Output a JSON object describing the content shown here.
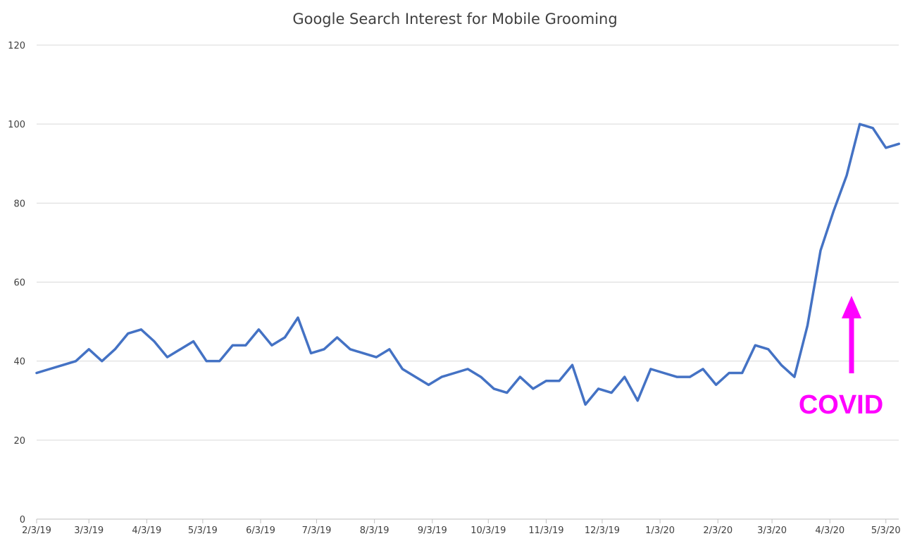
{
  "chart_data": {
    "type": "line",
    "title": "Google Search Interest for Mobile Grooming",
    "xlabel": "",
    "ylabel": "",
    "ylim": [
      0,
      120
    ],
    "y_ticks": [
      0,
      20,
      40,
      60,
      80,
      100,
      120
    ],
    "x_start": "2/3/19",
    "x_interval": "weekly",
    "x_tick_labels": [
      "2/3/19",
      "3/3/19",
      "4/3/19",
      "5/3/19",
      "6/3/19",
      "7/3/19",
      "8/3/19",
      "9/3/19",
      "10/3/19",
      "11/3/19",
      "12/3/19",
      "1/3/20",
      "2/3/20",
      "3/3/20",
      "4/3/20",
      "5/3/20"
    ],
    "grid": true,
    "legend": "none",
    "series": [
      {
        "color": "#4472c4",
        "values": [
          37,
          38,
          39,
          40,
          43,
          40,
          43,
          47,
          48,
          45,
          41,
          43,
          45,
          40,
          40,
          44,
          44,
          48,
          44,
          46,
          51,
          42,
          43,
          46,
          43,
          42,
          41,
          43,
          38,
          36,
          34,
          36,
          37,
          38,
          36,
          33,
          32,
          36,
          33,
          35,
          35,
          39,
          29,
          33,
          32,
          36,
          30,
          38,
          37,
          36,
          36,
          38,
          34,
          37,
          37,
          44,
          43,
          39,
          36,
          49,
          68,
          78,
          87,
          100,
          99,
          94,
          95
        ]
      }
    ],
    "annotations": [
      {
        "text": "COVID",
        "color": "#ff00ff",
        "arrow": "up"
      }
    ]
  }
}
